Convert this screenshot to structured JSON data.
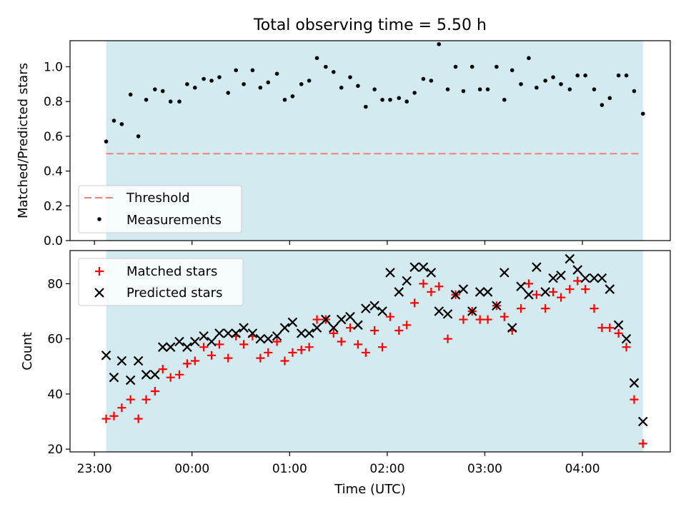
{
  "figure": {
    "title": "Total observing time = 5.50 h",
    "xlabel": "Time (UTC)",
    "x_ticks": [
      {
        "t": 23.0,
        "label": "23:00"
      },
      {
        "t": 24.0,
        "label": "00:00"
      },
      {
        "t": 25.0,
        "label": "01:00"
      },
      {
        "t": 26.0,
        "label": "02:00"
      },
      {
        "t": 27.0,
        "label": "03:00"
      },
      {
        "t": 28.0,
        "label": "04:00"
      }
    ],
    "xlim": [
      22.75,
      28.9
    ],
    "observing_window": [
      23.12,
      28.62
    ],
    "colors": {
      "window": "#d3eaf1",
      "threshold": "#f08080",
      "measurement": "#000000",
      "matched": "#ff0000",
      "predicted": "#000000"
    }
  },
  "chart_data": [
    {
      "type": "scatter",
      "ylabel": "Matched/Predicted stars",
      "ylim": [
        0,
        1.15
      ],
      "y_ticks": [
        "0.0",
        "0.2",
        "0.4",
        "0.6",
        "0.8",
        "1.0"
      ],
      "legend": {
        "position": "lower-left",
        "entries": [
          "Threshold",
          "Measurements"
        ]
      },
      "threshold": {
        "name": "Threshold",
        "y": 0.5,
        "x_range": [
          23.12,
          28.58
        ]
      },
      "series": [
        {
          "name": "Measurements",
          "x": [
            23.12,
            23.2,
            23.28,
            23.37,
            23.45,
            23.53,
            23.62,
            23.7,
            23.78,
            23.87,
            23.95,
            24.03,
            24.12,
            24.2,
            24.28,
            24.37,
            24.45,
            24.53,
            24.62,
            24.7,
            24.78,
            24.87,
            24.95,
            25.03,
            25.12,
            25.2,
            25.28,
            25.37,
            25.45,
            25.53,
            25.62,
            25.7,
            25.78,
            25.87,
            25.95,
            26.03,
            26.12,
            26.2,
            26.28,
            26.37,
            26.45,
            26.53,
            26.62,
            26.7,
            26.78,
            26.87,
            26.95,
            27.03,
            27.12,
            27.2,
            27.28,
            27.37,
            27.45,
            27.53,
            27.62,
            27.7,
            27.78,
            27.87,
            27.95,
            28.03,
            28.12,
            28.2,
            28.28,
            28.37,
            28.45,
            28.53,
            28.62
          ],
          "y": [
            0.57,
            0.69,
            0.67,
            0.84,
            0.6,
            0.81,
            0.87,
            0.86,
            0.8,
            0.8,
            0.9,
            0.88,
            0.93,
            0.92,
            0.94,
            0.85,
            0.98,
            0.9,
            0.98,
            0.88,
            0.91,
            0.96,
            0.81,
            0.83,
            0.9,
            0.92,
            1.05,
            1.0,
            0.97,
            0.88,
            0.94,
            0.89,
            0.77,
            0.87,
            0.81,
            0.81,
            0.82,
            0.8,
            0.85,
            0.93,
            0.92,
            1.13,
            0.87,
            1.0,
            0.86,
            1.0,
            0.87,
            0.87,
            1.0,
            0.81,
            0.98,
            0.9,
            1.05,
            0.88,
            0.92,
            0.94,
            0.9,
            0.87,
            0.95,
            0.95,
            0.87,
            0.78,
            0.82,
            0.95,
            0.95,
            0.86,
            0.73
          ]
        }
      ]
    },
    {
      "type": "scatter",
      "ylabel": "Count",
      "ylim": [
        19,
        92
      ],
      "y_ticks": [
        "20",
        "40",
        "60",
        "80"
      ],
      "legend": {
        "position": "upper-left",
        "entries": [
          "Matched stars",
          "Predicted stars"
        ]
      },
      "series": [
        {
          "name": "Matched stars",
          "marker": "plus",
          "x": [
            23.12,
            23.2,
            23.28,
            23.37,
            23.45,
            23.53,
            23.62,
            23.7,
            23.78,
            23.87,
            23.95,
            24.03,
            24.12,
            24.2,
            24.28,
            24.37,
            24.45,
            24.53,
            24.62,
            24.7,
            24.78,
            24.87,
            24.95,
            25.03,
            25.12,
            25.2,
            25.28,
            25.37,
            25.45,
            25.53,
            25.62,
            25.7,
            25.78,
            25.87,
            25.95,
            26.03,
            26.12,
            26.2,
            26.28,
            26.37,
            26.45,
            26.53,
            26.62,
            26.7,
            26.78,
            26.87,
            26.95,
            27.03,
            27.12,
            27.2,
            27.28,
            27.37,
            27.45,
            27.53,
            27.62,
            27.7,
            27.78,
            27.87,
            27.95,
            28.03,
            28.12,
            28.2,
            28.28,
            28.37,
            28.45,
            28.53,
            28.62
          ],
          "y": [
            31,
            32,
            35,
            38,
            31,
            38,
            41,
            49,
            46,
            47,
            51,
            52,
            57,
            54,
            58,
            53,
            61,
            58,
            61,
            53,
            55,
            59,
            52,
            55,
            56,
            57,
            67,
            67,
            62,
            59,
            64,
            58,
            55,
            63,
            57,
            68,
            63,
            65,
            73,
            80,
            77,
            79,
            60,
            76,
            67,
            70,
            67,
            67,
            72,
            68,
            63,
            71,
            80,
            76,
            71,
            77,
            75,
            78,
            81,
            78,
            71,
            64,
            64,
            62,
            57,
            38,
            22
          ]
        },
        {
          "name": "Predicted stars",
          "marker": "x",
          "x": [
            23.12,
            23.2,
            23.28,
            23.37,
            23.45,
            23.53,
            23.62,
            23.7,
            23.78,
            23.87,
            23.95,
            24.03,
            24.12,
            24.2,
            24.28,
            24.37,
            24.45,
            24.53,
            24.62,
            24.7,
            24.78,
            24.87,
            24.95,
            25.03,
            25.12,
            25.2,
            25.28,
            25.37,
            25.45,
            25.53,
            25.62,
            25.7,
            25.78,
            25.87,
            25.95,
            26.03,
            26.12,
            26.2,
            26.28,
            26.37,
            26.45,
            26.53,
            26.62,
            26.7,
            26.78,
            26.87,
            26.95,
            27.03,
            27.12,
            27.2,
            27.28,
            27.37,
            27.45,
            27.53,
            27.62,
            27.7,
            27.78,
            27.87,
            27.95,
            28.03,
            28.12,
            28.2,
            28.28,
            28.37,
            28.45,
            28.53,
            28.62
          ],
          "y": [
            54,
            46,
            52,
            45,
            52,
            47,
            47,
            57,
            57,
            59,
            57,
            59,
            61,
            59,
            62,
            62,
            62,
            64,
            62,
            60,
            60,
            61,
            64,
            66,
            62,
            62,
            64,
            67,
            64,
            67,
            68,
            65,
            71,
            72,
            70,
            84,
            77,
            81,
            86,
            86,
            84,
            70,
            69,
            76,
            78,
            70,
            77,
            77,
            72,
            84,
            64,
            79,
            76,
            86,
            77,
            82,
            83,
            89,
            85,
            82,
            82,
            82,
            78,
            65,
            60,
            44,
            30
          ]
        }
      ]
    }
  ]
}
